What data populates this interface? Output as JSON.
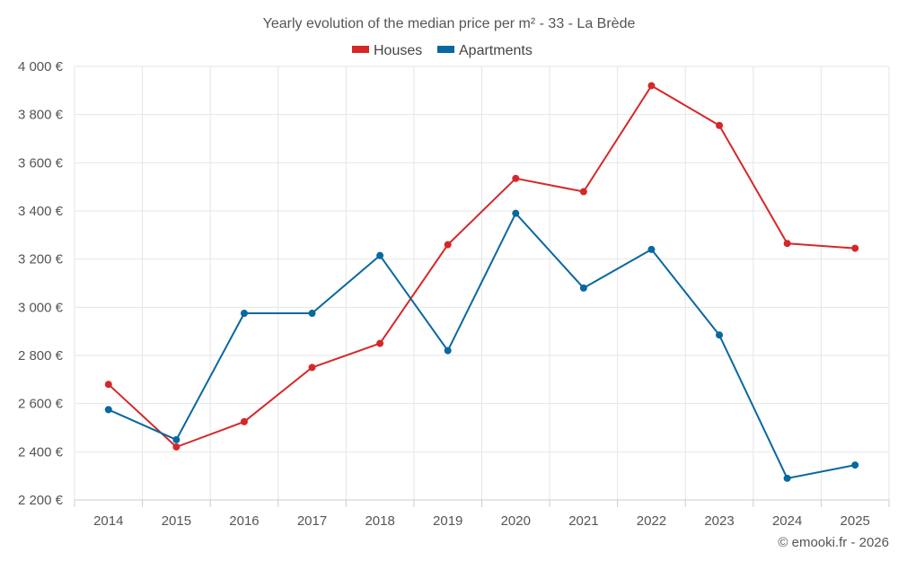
{
  "chart_data": {
    "type": "line",
    "title": "Yearly evolution of the median price per m² - 33 - La Brède",
    "categories": [
      "2014",
      "2015",
      "2016",
      "2017",
      "2018",
      "2019",
      "2020",
      "2021",
      "2022",
      "2023",
      "2024",
      "2025"
    ],
    "series": [
      {
        "name": "Houses",
        "color": "#d62728",
        "values": [
          2680,
          2420,
          2525,
          2750,
          2850,
          3260,
          3535,
          3480,
          3920,
          3755,
          3265,
          3245
        ]
      },
      {
        "name": "Apartments",
        "color": "#0868a0",
        "values": [
          2575,
          2450,
          2975,
          2975,
          3215,
          2820,
          3390,
          3080,
          3240,
          2885,
          2290,
          2345
        ]
      }
    ],
    "y_ticks": [
      2200,
      2400,
      2600,
      2800,
      3000,
      3200,
      3400,
      3600,
      3800,
      4000
    ],
    "y_tick_labels": [
      "2 200 €",
      "2 400 €",
      "2 600 €",
      "2 800 €",
      "3 000 €",
      "3 200 €",
      "3 400 €",
      "3 600 €",
      "3 800 €",
      "4 000 €"
    ],
    "ylim": [
      2200,
      4000
    ],
    "xlabel": "",
    "ylabel": "",
    "grid": true,
    "legend_position": "top-center"
  },
  "credit": "© emooki.fr - 2026"
}
